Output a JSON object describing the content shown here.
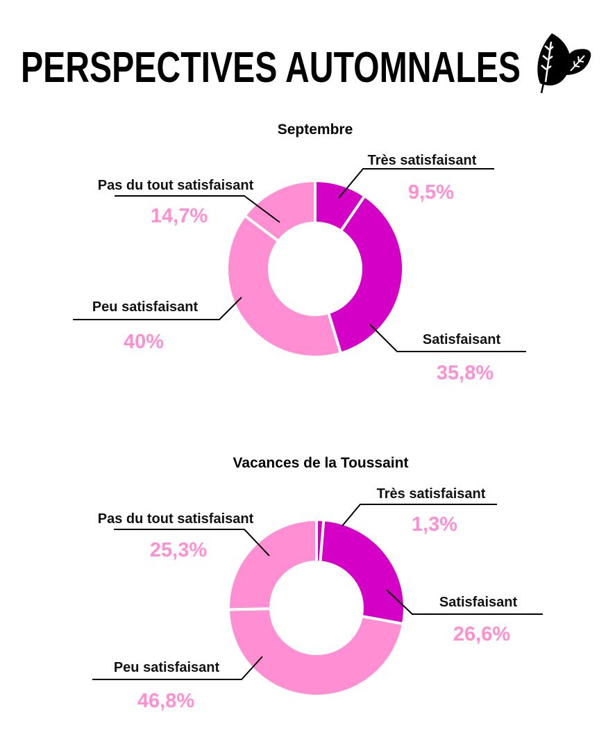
{
  "title": "PERSPECTIVES AUTOMNALES",
  "colors": {
    "dark": "#D500C6",
    "light": "#FF8FD2",
    "percent_text": "#FF8FD2"
  },
  "chart_data": [
    {
      "type": "pie",
      "subtype": "donut",
      "title": "Septembre",
      "categories": [
        "Très satisfaisant",
        "Satisfaisant",
        "Peu satisfaisant",
        "Pas du tout satisfaisant"
      ],
      "values": [
        9.5,
        35.8,
        40,
        14.7
      ],
      "value_labels": [
        "9,5%",
        "35,8%",
        "40%",
        "14,7%"
      ],
      "colors": [
        "#D500C6",
        "#D500C6",
        "#FF8FD2",
        "#FF8FD2"
      ]
    },
    {
      "type": "pie",
      "subtype": "donut",
      "title": "Vacances de la Toussaint",
      "categories": [
        "Très satisfaisant",
        "Satisfaisant",
        "Peu satisfaisant",
        "Pas du tout satisfaisant"
      ],
      "values": [
        1.3,
        26.6,
        46.8,
        25.3
      ],
      "value_labels": [
        "1,3%",
        "26,6%",
        "46,8%",
        "25,3%"
      ],
      "colors": [
        "#D500C6",
        "#D500C6",
        "#FF8FD2",
        "#FF8FD2"
      ]
    }
  ]
}
